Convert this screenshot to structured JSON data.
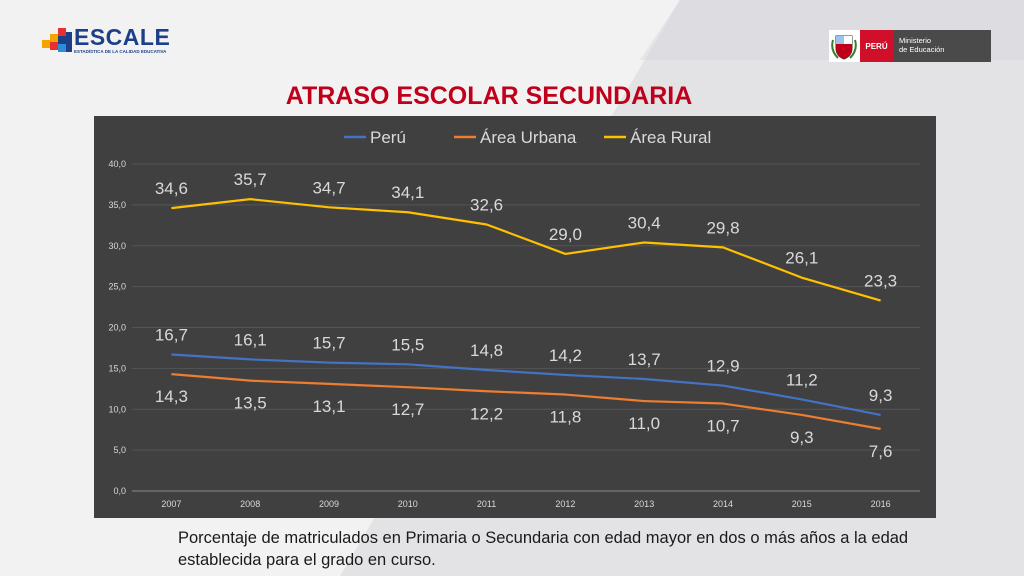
{
  "brand": {
    "logo_text": "ESCALE",
    "logo_subtitle": "ESTADÍSTICA DE LA CALIDAD EDUCATIVA",
    "ministry_country": "PERÚ",
    "ministry_name_line1": "Ministerio",
    "ministry_name_line2": "de Educación"
  },
  "slide": {
    "title": "ATRASO ESCOLAR SECUNDARIA",
    "caption": "Porcentaje de matriculados en Primaria o Secundaria con edad mayor en dos o más años a la edad establecida para el grado en curso."
  },
  "colors": {
    "title": "#c0001b",
    "chart_bg": "#404040",
    "peru": "#4472c4",
    "urbana": "#ed7d31",
    "rural": "#ffc000"
  },
  "chart_data": {
    "type": "line",
    "categories": [
      "2007",
      "2008",
      "2009",
      "2010",
      "2011",
      "2012",
      "2013",
      "2014",
      "2015",
      "2016"
    ],
    "series": [
      {
        "name": "Perú",
        "color": "#4472c4",
        "values": [
          16.7,
          16.1,
          15.7,
          15.5,
          14.8,
          14.2,
          13.7,
          12.9,
          11.2,
          9.3
        ],
        "labels": [
          "16,7",
          "16,1",
          "15,7",
          "15,5",
          "14,8",
          "14,2",
          "13,7",
          "12,9",
          "11,2",
          "9,3"
        ]
      },
      {
        "name": "Área Urbana",
        "color": "#ed7d31",
        "values": [
          14.3,
          13.5,
          13.1,
          12.7,
          12.2,
          11.8,
          11.0,
          10.7,
          9.3,
          7.6
        ],
        "labels": [
          "14,3",
          "13,5",
          "13,1",
          "12,7",
          "12,2",
          "11,8",
          "11,0",
          "10,7",
          "9,3",
          "7,6"
        ]
      },
      {
        "name": "Área Rural",
        "color": "#ffc000",
        "values": [
          34.6,
          35.7,
          34.7,
          34.1,
          32.6,
          29.0,
          30.4,
          29.8,
          26.1,
          23.3
        ],
        "labels": [
          "34,6",
          "35,7",
          "34,7",
          "34,1",
          "32,6",
          "29,0",
          "30,4",
          "29,8",
          "26,1",
          "23,3"
        ]
      }
    ],
    "ylim": [
      0,
      40
    ],
    "yticks": [
      0,
      5,
      10,
      15,
      20,
      25,
      30,
      35,
      40
    ],
    "ytick_labels": [
      "0,0",
      "5,0",
      "10,0",
      "15,0",
      "20,0",
      "25,0",
      "30,0",
      "35,0",
      "40,0"
    ],
    "legend_position": "top",
    "grid": true
  }
}
